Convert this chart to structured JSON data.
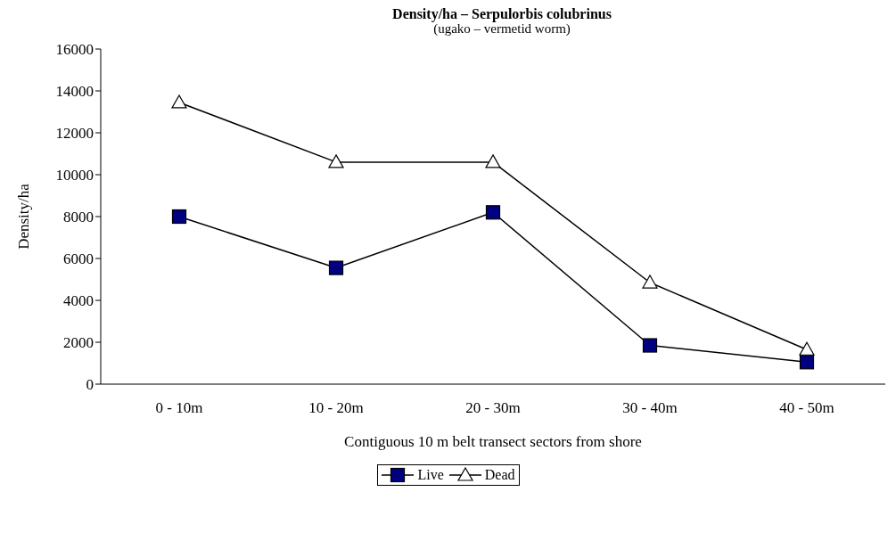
{
  "chart_data": {
    "type": "line",
    "title": "Density/ha – Serpulorbis colubrinus",
    "subtitle": "(ugako – vermetid worm)",
    "xlabel": "Contiguous 10 m belt transect sectors from shore",
    "ylabel": "Density/ha",
    "categories": [
      "0 - 10m",
      "10 - 20m",
      "20 - 30m",
      "30 - 40m",
      "40 - 50m"
    ],
    "series": [
      {
        "name": "Live",
        "color": "#000080",
        "marker": "square",
        "values": [
          8000,
          5550,
          8200,
          1850,
          1050
        ]
      },
      {
        "name": "Dead",
        "color": "#ffffff",
        "marker": "triangle",
        "values": [
          13450,
          10600,
          10600,
          4850,
          1650
        ]
      }
    ],
    "ylim": [
      0,
      16000
    ],
    "yticks": [
      0,
      2000,
      4000,
      6000,
      8000,
      10000,
      12000,
      14000,
      16000
    ],
    "grid": false,
    "legend": "bottom",
    "line_style": "solid"
  }
}
